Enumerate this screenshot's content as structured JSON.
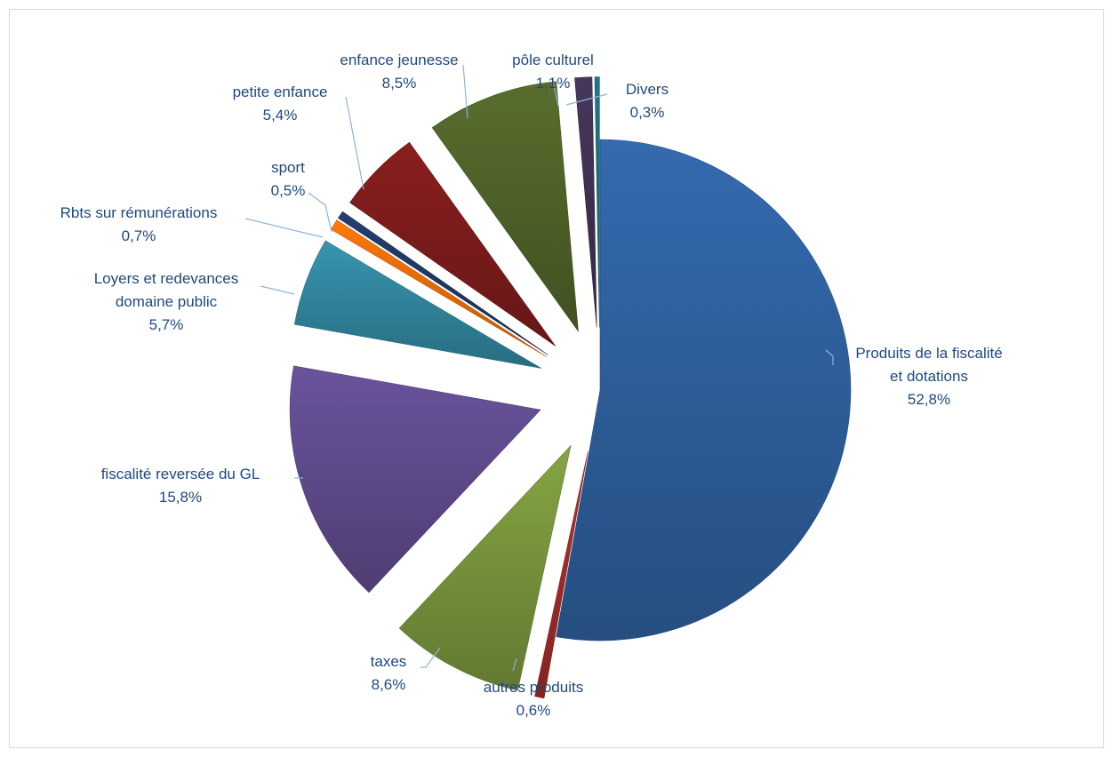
{
  "chart_data": {
    "type": "pie",
    "title": "",
    "start_angle_deg": 0,
    "direction": "clockwise",
    "slices": [
      {
        "label": [
          "Produits de la fiscalité",
          "et dotations"
        ],
        "value_label": "52,8%",
        "value": 52.8,
        "color": "#2e5f9c",
        "explode": 0
      },
      {
        "label": [
          "autres produits"
        ],
        "value_label": "0,6%",
        "value": 0.6,
        "color": "#a12c2a",
        "explode": 0.25
      },
      {
        "label": [
          "taxes"
        ],
        "value_label": "8,6%",
        "value": 8.6,
        "color": "#77933c",
        "explode": 0.25
      },
      {
        "label": [
          "fiscalité reversée du GL"
        ],
        "value_label": "15,8%",
        "value": 15.8,
        "color": "#5f4a8b",
        "explode": 0.25
      },
      {
        "label": [
          "Loyers et redevances",
          "domaine public"
        ],
        "value_label": "5,7%",
        "value": 5.7,
        "color": "#31859c",
        "explode": 0.25
      },
      {
        "label": [
          "Rbts sur rémunérations"
        ],
        "value_label": "0,7%",
        "value": 0.7,
        "color": "#e46c0a",
        "explode": 0.25
      },
      {
        "label": [
          "sport"
        ],
        "value_label": "0,5%",
        "value": 0.5,
        "color": "#1f3864",
        "explode": 0.25
      },
      {
        "label": [
          "petite enfance"
        ],
        "value_label": "5,4%",
        "value": 5.4,
        "color": "#7b1c1c",
        "explode": 0.25
      },
      {
        "label": [
          "enfance jeunesse"
        ],
        "value_label": "8,5%",
        "value": 8.5,
        "color": "#4f6228",
        "explode": 0.25
      },
      {
        "label": [
          "pôle culturel"
        ],
        "value_label": "1,1%",
        "value": 1.1,
        "color": "#3f3151",
        "explode": 0.25
      },
      {
        "label": [
          "Divers"
        ],
        "value_label": "0,3%",
        "value": 0.3,
        "color": "#1b6b7a",
        "explode": 0.25
      }
    ]
  }
}
